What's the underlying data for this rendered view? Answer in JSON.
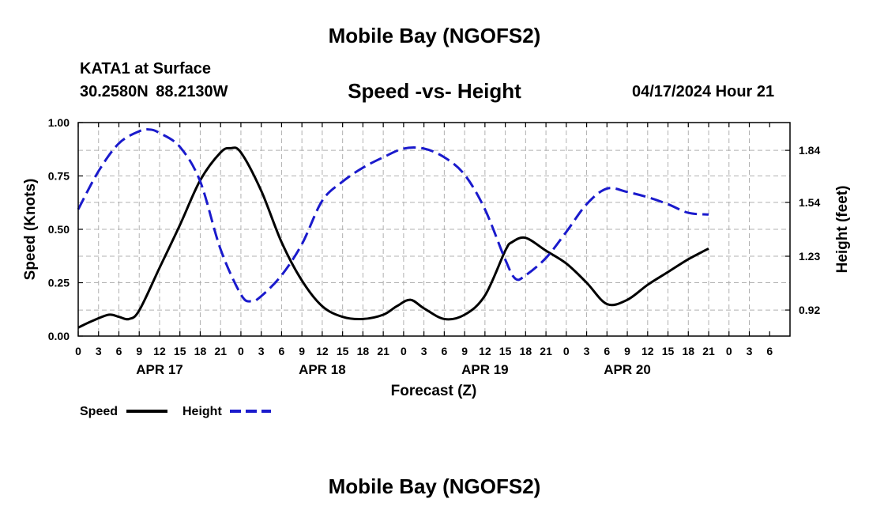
{
  "header": {
    "main_title": "Mobile Bay (NGOFS2)",
    "station_name": "KATA1 at Surface",
    "station_coords": "30.2580N  88.2130W",
    "chart_title": "Speed -vs- Height",
    "forecast_time": "04/17/2024 Hour 21"
  },
  "footer": {
    "title": "Mobile Bay (NGOFS2)"
  },
  "colors": {
    "speed": "#000000",
    "height": "#1a1acc",
    "grid": "#b0b0b0"
  },
  "chart_data": {
    "type": "line",
    "title": "Speed -vs- Height",
    "xlabel": "Forecast (Z)",
    "ylabel": "Speed (Knots)",
    "y2label": "Height (feet)",
    "x_range_hours": [
      0,
      105
    ],
    "ylim": [
      0,
      1.0
    ],
    "y2lim": [
      0.77,
      2.0
    ],
    "y_ticks": [
      0.0,
      0.25,
      0.5,
      0.75,
      1.0
    ],
    "y_tick_labels": [
      "0.00",
      "0.25",
      "0.50",
      "0.75",
      "1.00"
    ],
    "y2_ticks": [
      0.92,
      1.23,
      1.54,
      1.84
    ],
    "y2_tick_labels": [
      "0.92",
      "1.23",
      "1.54",
      "1.84"
    ],
    "x_tick_labels": [
      "0",
      "3",
      "6",
      "9",
      "12",
      "15",
      "18",
      "21",
      "0",
      "3",
      "6",
      "9",
      "12",
      "15",
      "18",
      "21",
      "0",
      "3",
      "6",
      "9",
      "12",
      "15",
      "18",
      "21",
      "0",
      "3",
      "6",
      "9",
      "12",
      "15",
      "18",
      "21",
      "0",
      "3",
      "6"
    ],
    "date_labels": [
      {
        "label": "APR 17",
        "hour": 12
      },
      {
        "label": "APR 18",
        "hour": 36
      },
      {
        "label": "APR 19",
        "hour": 60
      },
      {
        "label": "APR 20",
        "hour": 81
      }
    ],
    "grid": true,
    "legend_position": "bottom-left",
    "series": [
      {
        "name": "Speed",
        "axis": "left",
        "style": "solid",
        "x": [
          0,
          2,
          4.5,
          6,
          7.5,
          9,
          12,
          15,
          18,
          21,
          22.5,
          24,
          27,
          30,
          33,
          36,
          39,
          42,
          45,
          47,
          49,
          51,
          54,
          57,
          60,
          63,
          64,
          66,
          69,
          72,
          75,
          78,
          81,
          84,
          87,
          90,
          93
        ],
        "values": [
          0.04,
          0.07,
          0.1,
          0.09,
          0.08,
          0.12,
          0.32,
          0.52,
          0.73,
          0.86,
          0.88,
          0.86,
          0.68,
          0.44,
          0.26,
          0.14,
          0.09,
          0.08,
          0.1,
          0.14,
          0.17,
          0.13,
          0.08,
          0.1,
          0.19,
          0.4,
          0.44,
          0.46,
          0.4,
          0.34,
          0.25,
          0.15,
          0.17,
          0.24,
          0.3,
          0.36,
          0.41
        ]
      },
      {
        "name": "Height",
        "axis": "right",
        "style": "dashed",
        "x": [
          0,
          3,
          6,
          9,
          10.5,
          12,
          15,
          18,
          21,
          24,
          25.5,
          27,
          30,
          33,
          36,
          39,
          42,
          45,
          48,
          51,
          54,
          57,
          60,
          63,
          64.5,
          66,
          69,
          72,
          75,
          78,
          81,
          84,
          87,
          90,
          93
        ],
        "values": [
          1.5,
          1.72,
          1.88,
          1.95,
          1.96,
          1.94,
          1.86,
          1.66,
          1.27,
          1.01,
          0.97,
          1.0,
          1.12,
          1.3,
          1.55,
          1.66,
          1.74,
          1.8,
          1.85,
          1.85,
          1.8,
          1.7,
          1.5,
          1.21,
          1.1,
          1.12,
          1.22,
          1.37,
          1.53,
          1.62,
          1.6,
          1.57,
          1.53,
          1.48,
          1.47
        ]
      }
    ]
  }
}
